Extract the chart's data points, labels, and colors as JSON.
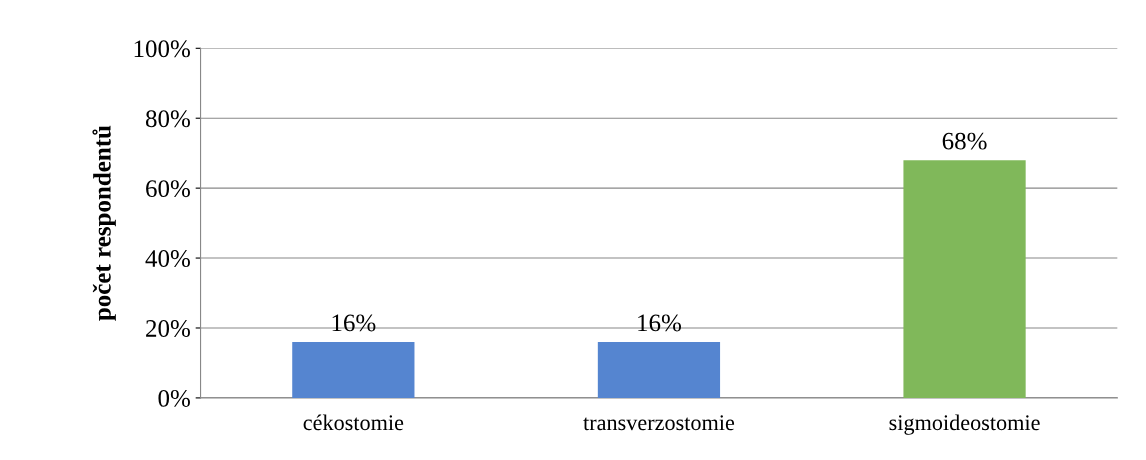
{
  "chart_data": {
    "type": "bar",
    "ylabel": "počet respondentů",
    "categories": [
      "cékostomie",
      "transverzostomie",
      "sigmoideostomie"
    ],
    "values": [
      16,
      16,
      68
    ],
    "value_labels": [
      "16%",
      "16%",
      "68%"
    ],
    "colors": [
      "#5585d0",
      "#5585d0",
      "#80b85a"
    ],
    "ylim": [
      0,
      100
    ],
    "yticks": [
      {
        "value": 0,
        "label": "0%"
      },
      {
        "value": 20,
        "label": "20%"
      },
      {
        "value": 40,
        "label": "40%"
      },
      {
        "value": 60,
        "label": "60%"
      },
      {
        "value": 80,
        "label": "80%"
      },
      {
        "value": 100,
        "label": "100%"
      }
    ],
    "grid": "y",
    "legend": false
  }
}
